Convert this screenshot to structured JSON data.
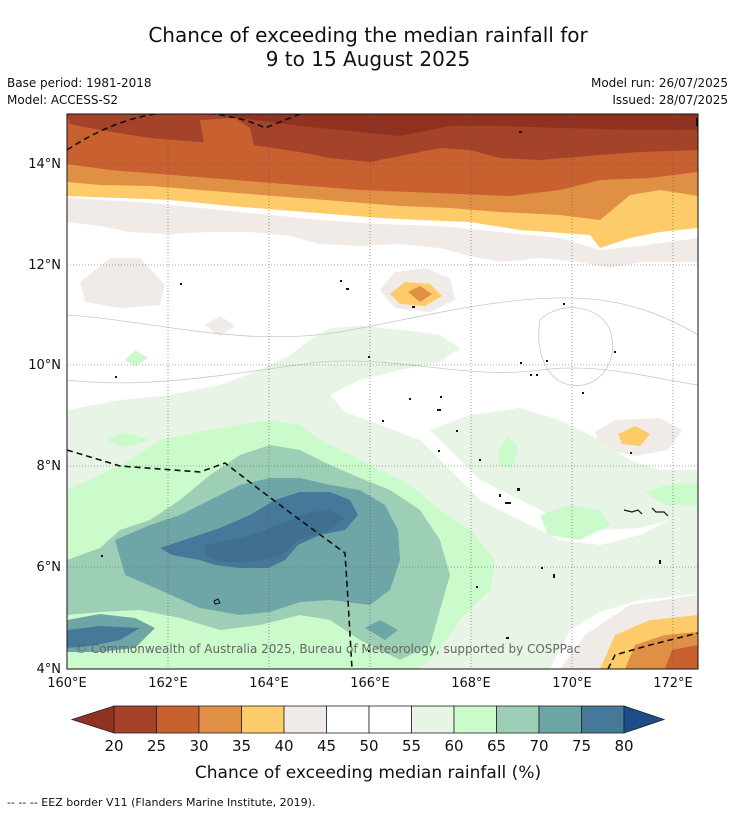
{
  "title": {
    "line1": "Chance of exceeding the median rainfall for",
    "line2": "9 to 15 August 2025"
  },
  "meta": {
    "base_period": "Base period: 1981-2018",
    "model": "Model: ACCESS-S2",
    "model_run": "Model run: 26/07/2025",
    "issued": "Issued: 28/07/2025"
  },
  "axes": {
    "lat_labels": [
      "14°N",
      "12°N",
      "10°N",
      "8°N",
      "6°N",
      "4°N"
    ],
    "lon_labels": [
      "160°E",
      "162°E",
      "164°E",
      "166°E",
      "168°E",
      "170°E",
      "172°E"
    ]
  },
  "copyright": "© Commonwealth of Australia 2025, Bureau of Meteorology, supported by COSPPac",
  "colorbar": {
    "ticks": [
      "20",
      "25",
      "30",
      "35",
      "40",
      "45",
      "50",
      "55",
      "60",
      "65",
      "70",
      "75",
      "80"
    ],
    "colors": [
      "#a4422a",
      "#c8602f",
      "#e09045",
      "#fdcb6a",
      "#f0ebe6",
      "#ffffff",
      "#ffffff",
      "#e8f4e6",
      "#cbfacb",
      "#9dcfb6",
      "#6ea6a8",
      "#46789a"
    ],
    "under_color": "#8f3320",
    "over_color": "#1b4e86",
    "title": "Chance of exceeding median rainfall (%)"
  },
  "footer": "--  --  -- EEZ border V11 (Flanders Marine Institute, 2019)."
}
